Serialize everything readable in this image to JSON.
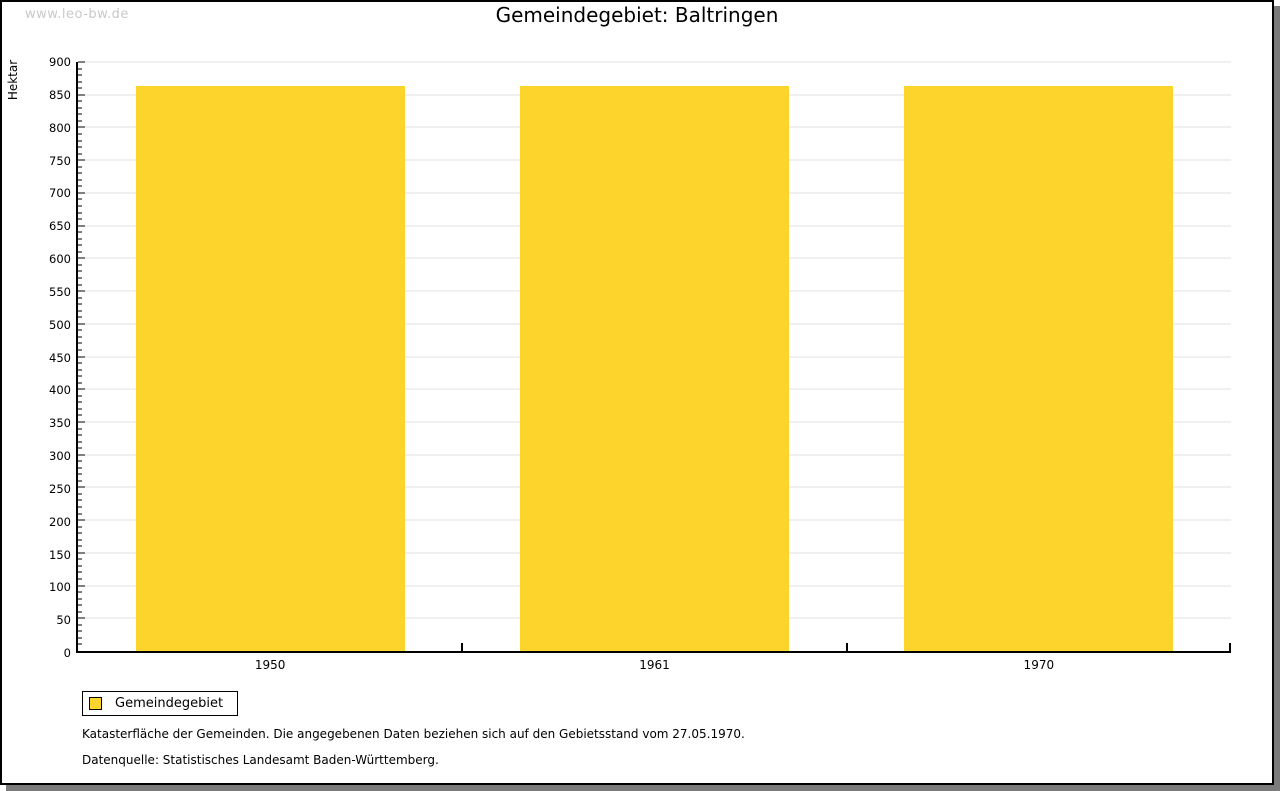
{
  "watermark": "www.leo-bw.de",
  "header": {
    "title": "Gemeindegebiet: Baltringen"
  },
  "legend": {
    "label": "Gemeindegebiet"
  },
  "footnotes": {
    "line1": "Katasterfläche der Gemeinden. Die angegebenen Daten beziehen sich auf den Gebietsstand vom 27.05.1970.",
    "line2": "Datenquelle: Statistisches Landesamt Baden-Württemberg."
  },
  "colors": {
    "bar": "#FCD42C",
    "grid": "#E2E2E2",
    "axis": "#000000",
    "watermark": "#C9C9C9",
    "frame_shadow": "#7B7B7B"
  },
  "chart_data": {
    "type": "bar",
    "title": "Gemeindegebiet: Baltringen",
    "categories": [
      "1950",
      "1961",
      "1970"
    ],
    "series": [
      {
        "name": "Gemeindegebiet",
        "values": [
          864,
          864,
          864
        ],
        "color": "#FCD42C"
      }
    ],
    "xlabel": "",
    "ylabel": "Hektar",
    "ylim": [
      0,
      900
    ],
    "y_major_step": 50,
    "y_minor_step": 10,
    "grid": "horizontal gridlines at major ticks",
    "legend_position": "bottom-left outside plot",
    "bar_width_fraction": 0.7
  }
}
